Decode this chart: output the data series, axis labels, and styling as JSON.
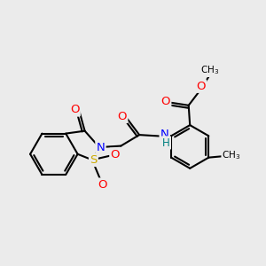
{
  "bg_color": "#ebebeb",
  "atom_colors": {
    "C": "#000000",
    "O": "#ff0000",
    "N": "#0000ff",
    "S": "#ccaa00"
  },
  "bond_lw": 1.5,
  "font_size": 8.5,
  "fig_size": [
    3.0,
    3.0
  ],
  "dpi": 100,
  "scale": 1.0
}
